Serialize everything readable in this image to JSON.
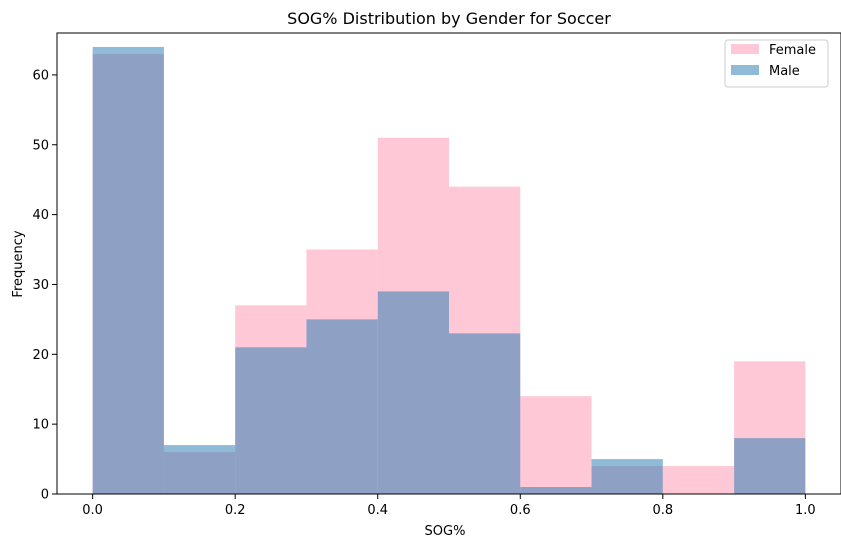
{
  "chart_data": {
    "type": "bar",
    "subtype": "overlapping-histogram",
    "title": "SOG% Distribution by Gender for Soccer",
    "xlabel": "SOG%",
    "ylabel": "Frequency",
    "xlim": [
      -0.05,
      1.05
    ],
    "ylim": [
      0,
      66
    ],
    "xticks": [
      0.0,
      0.2,
      0.4,
      0.6,
      0.8,
      1.0
    ],
    "xtick_labels": [
      "0.0",
      "0.2",
      "0.4",
      "0.6",
      "0.8",
      "1.0"
    ],
    "yticks": [
      0,
      10,
      20,
      30,
      40,
      50,
      60
    ],
    "ytick_labels": [
      "0",
      "10",
      "20",
      "30",
      "40",
      "50",
      "60"
    ],
    "bin_edges": [
      0.0,
      0.1,
      0.2,
      0.3,
      0.4,
      0.5,
      0.6,
      0.7,
      0.8,
      0.9,
      1.0
    ],
    "grid": false,
    "legend_position": "top-right",
    "series": [
      {
        "name": "Female",
        "color": "#ffb6c8",
        "opacity": 0.75,
        "values": [
          63,
          6,
          27,
          35,
          51,
          44,
          14,
          4,
          4,
          19
        ]
      },
      {
        "name": "Male",
        "color": "#1f77b4",
        "opacity": 0.5,
        "values": [
          64,
          7,
          21,
          25,
          29,
          23,
          1,
          5,
          0,
          8
        ]
      }
    ]
  }
}
